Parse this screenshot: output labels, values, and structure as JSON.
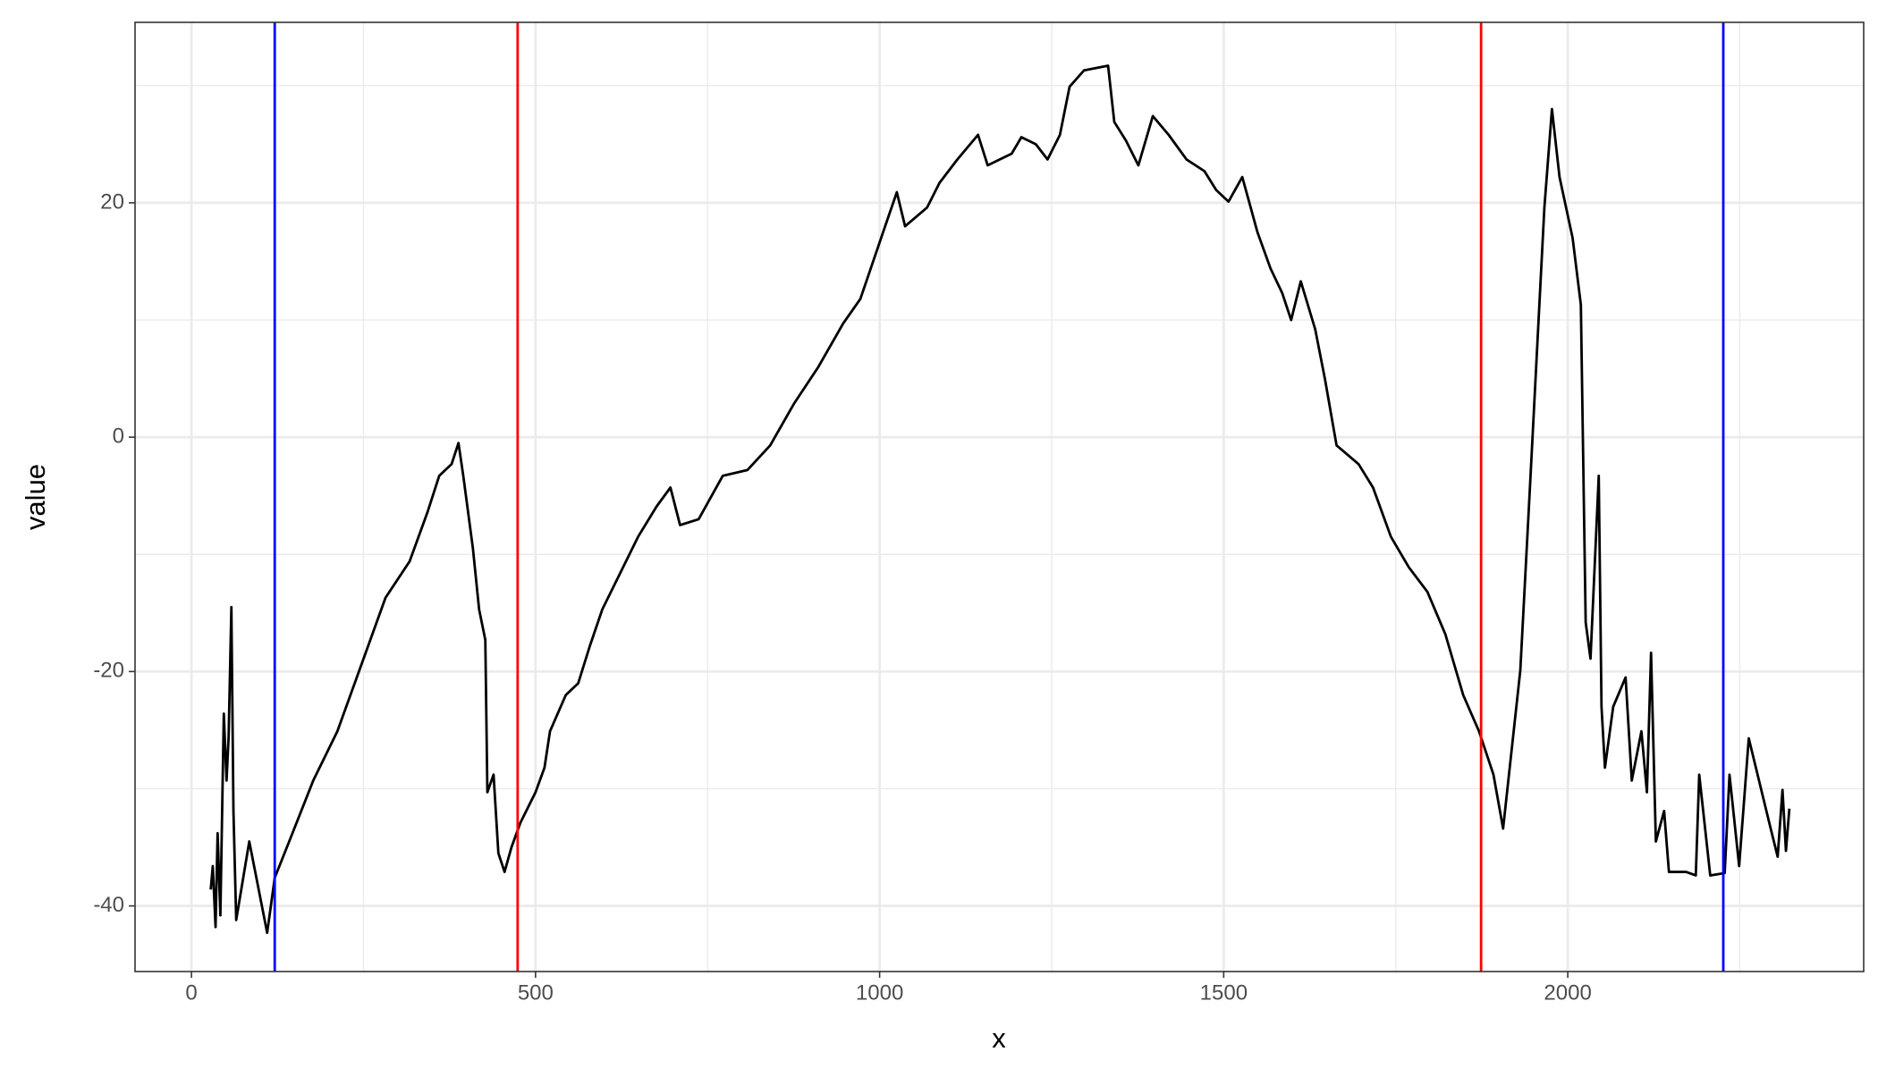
{
  "chart_data": {
    "type": "line",
    "x_label": "x",
    "y_label": "value",
    "color": "#000000",
    "x": [
      28,
      31,
      35,
      38,
      42,
      47,
      51,
      54,
      58,
      61,
      65,
      84,
      110,
      121,
      142,
      177,
      212,
      247,
      282,
      317,
      343,
      360,
      378,
      388,
      395,
      409,
      418,
      427,
      430,
      439,
      446,
      455,
      465,
      478,
      500,
      513,
      521,
      544,
      562,
      579,
      597,
      623,
      649,
      676,
      696,
      710,
      737,
      772,
      808,
      841,
      876,
      911,
      947,
      972,
      990,
      1008,
      1025,
      1037,
      1069,
      1087,
      1113,
      1143,
      1157,
      1192,
      1206,
      1227,
      1244,
      1262,
      1276,
      1297,
      1332,
      1341,
      1358,
      1376,
      1397,
      1420,
      1446,
      1472,
      1489,
      1507,
      1527,
      1549,
      1568,
      1585,
      1598,
      1612,
      1633,
      1647,
      1664,
      1696,
      1717,
      1743,
      1769,
      1796,
      1822,
      1848,
      1871,
      1892,
      1906,
      1931,
      1945,
      1966,
      1977,
      1988,
      2007,
      2019,
      2026,
      2033,
      2045,
      2049,
      2054,
      2066,
      2084,
      2093,
      2107,
      2115,
      2121,
      2128,
      2140,
      2147,
      2172,
      2186,
      2191,
      2207,
      2228,
      2235,
      2249,
      2263,
      2294,
      2305,
      2312,
      2317,
      2322
    ],
    "values": [
      -38.6,
      -36.6,
      -41.8,
      -33.8,
      -40.8,
      -23.6,
      -29.3,
      -25.6,
      -14.5,
      -31.9,
      -41.2,
      -34.5,
      -42.3,
      -37.6,
      -34.5,
      -29.3,
      -25.1,
      -19.4,
      -13.7,
      -10.6,
      -6.4,
      -3.3,
      -2.3,
      -0.5,
      -3.3,
      -9.5,
      -14.7,
      -17.3,
      -30.3,
      -28.8,
      -35.5,
      -37.1,
      -35.0,
      -32.9,
      -30.3,
      -28.2,
      -25.1,
      -22.0,
      -21.0,
      -17.8,
      -14.7,
      -11.6,
      -8.5,
      -5.9,
      -4.3,
      -7.5,
      -7.0,
      -3.3,
      -2.8,
      -0.7,
      2.9,
      6.0,
      9.7,
      11.8,
      14.9,
      18.0,
      20.9,
      18.0,
      19.6,
      21.7,
      23.7,
      25.8,
      23.2,
      24.2,
      25.6,
      25.0,
      23.7,
      25.8,
      29.9,
      31.3,
      31.7,
      26.9,
      25.3,
      23.2,
      27.4,
      25.8,
      23.7,
      22.7,
      21.1,
      20.1,
      22.2,
      17.5,
      14.4,
      12.3,
      10.0,
      13.3,
      9.2,
      5.0,
      -0.7,
      -2.3,
      -4.3,
      -8.5,
      -11.1,
      -13.2,
      -16.8,
      -22.0,
      -25.1,
      -28.8,
      -33.4,
      -19.9,
      -4.3,
      19.6,
      28.0,
      22.2,
      17.0,
      11.3,
      -15.8,
      -18.9,
      -3.3,
      -23.0,
      -28.2,
      -23.0,
      -20.5,
      -29.3,
      -25.1,
      -30.3,
      -18.4,
      -34.5,
      -31.9,
      -37.1,
      -37.1,
      -37.4,
      -28.8,
      -37.4,
      -37.2,
      -28.8,
      -36.6,
      -25.7,
      -33.2,
      -35.8,
      -30.1,
      -35.3,
      -31.7
    ],
    "vlines": [
      {
        "x": 121,
        "color": "#0000ff"
      },
      {
        "x": 474,
        "color": "#ff0000"
      },
      {
        "x": 1874,
        "color": "#ff0000"
      },
      {
        "x": 2226,
        "color": "#0000ff"
      }
    ],
    "xlim": [
      -82,
      2430
    ],
    "ylim": [
      -45.6,
      35.4
    ],
    "xticks": [
      0,
      500,
      1000,
      1500,
      2000
    ],
    "yticks": [
      -40,
      -20,
      0,
      20
    ],
    "xminor_ticks": [
      250,
      750,
      1250,
      1750,
      2250
    ],
    "yminor_ticks": [
      -30,
      -10,
      10,
      30
    ],
    "grid": true
  }
}
